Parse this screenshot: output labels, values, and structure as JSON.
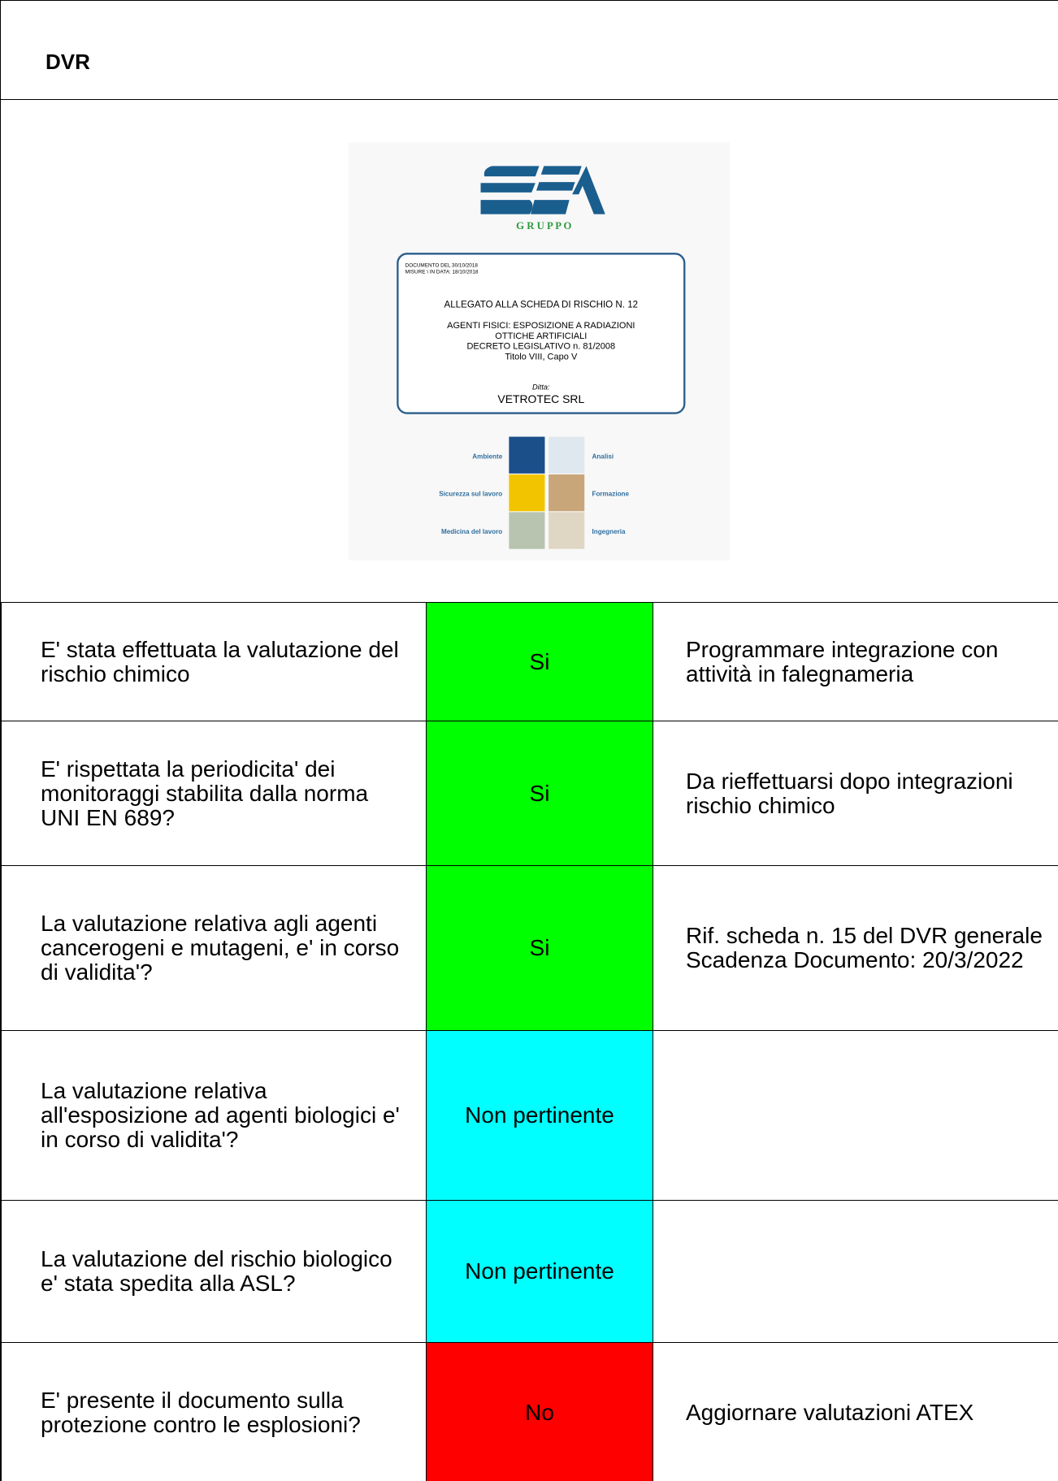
{
  "header": {
    "title": "DVR"
  },
  "cover": {
    "brand": "G R U P P O",
    "document_date": "DOCUMENTO DEL 30/10/2018",
    "measure_date": "MISURE \\ IN DATA: 18/10/2018",
    "attachment": "ALLEGATO ALLA SCHEDA DI RISCHIO N. 12",
    "subject_lines": [
      "AGENTI FISICI: ESPOSIZIONE A RADIAZIONI",
      "OTTICHE ARTIFICIALI",
      "DECRETO LEGISLATIVO n. 81/2008",
      "Titolo VIII, Capo V"
    ],
    "company_label": "Ditta:",
    "company": "VETROTEC SRL",
    "services_left": [
      "Ambiente",
      "Sicurezza sul lavoro",
      "Medicina del lavoro"
    ],
    "services_right": [
      "Analisi",
      "Formazione",
      "Ingegneria"
    ]
  },
  "table": {
    "rows": [
      {
        "question": "E' stata effettuata la valutazione del rischio chimico",
        "status": "Si",
        "color": "#00ff00",
        "note": "Programmare integrazione con attività in falegnameria"
      },
      {
        "question": "E' rispettata la periodicita' dei monitoraggi stabilita dalla norma UNI EN 689?",
        "status": "Si",
        "color": "#00ff00",
        "note": "Da rieffettuarsi dopo integrazioni rischio chimico"
      },
      {
        "question": "La valutazione relativa agli agenti cancerogeni e mutageni, e' in corso di validita'?",
        "status": "Si",
        "color": "#00ff00",
        "note": "Rif. scheda n. 15 del DVR generale\nScadenza Documento: 20/3/2022"
      },
      {
        "question": "La valutazione relativa all'esposizione ad agenti biologici e' in corso di validita'?",
        "status": "Non pertinente",
        "color": "#00ffff",
        "note": ""
      },
      {
        "question": "La valutazione del rischio biologico e' stata spedita alla ASL?",
        "status": "Non pertinente",
        "color": "#00ffff",
        "note": ""
      },
      {
        "question": "E' presente il documento sulla protezione contro le esplosioni?",
        "status": "No",
        "color": "#ff0000",
        "note": "Aggiornare valutazioni ATEX"
      }
    ]
  }
}
